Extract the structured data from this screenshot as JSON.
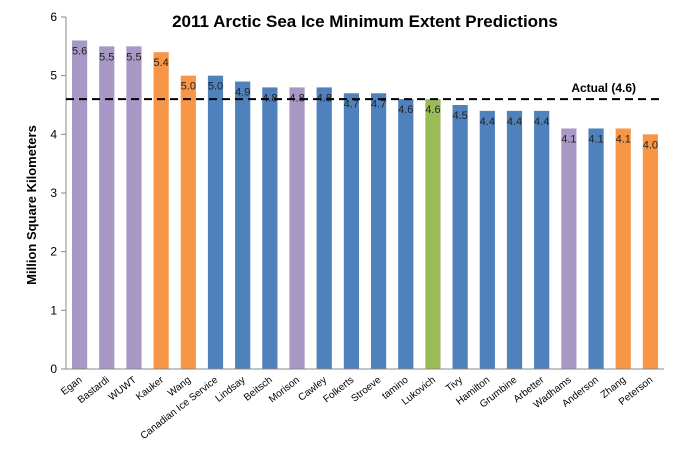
{
  "chart_data": {
    "type": "bar",
    "title": "2011 Arctic Sea Ice Minimum Extent Predictions",
    "xlabel": "",
    "ylabel": "Million Square Kilometers",
    "ylim": [
      0,
      6
    ],
    "yticks": [
      0,
      1,
      2,
      3,
      4,
      5,
      6
    ],
    "grid": false,
    "legend": "none",
    "categories": [
      "Egan",
      "Bastardi",
      "WUWT",
      "Kauker",
      "Wang",
      "Canadian Ice Service",
      "Lindsay",
      "Beitsch",
      "Morison",
      "Cawley",
      "Folkerts",
      "Stroeve",
      "tamino",
      "Lukovich",
      "Tivy",
      "Hamilton",
      "Grumbine",
      "Arbetter",
      "Wadhams",
      "Anderson",
      "Zhang",
      "Peterson"
    ],
    "values": [
      5.6,
      5.5,
      5.5,
      5.4,
      5.0,
      5.0,
      4.9,
      4.8,
      4.8,
      4.8,
      4.7,
      4.7,
      4.6,
      4.6,
      4.5,
      4.4,
      4.4,
      4.4,
      4.1,
      4.1,
      4.1,
      4.0
    ],
    "data_labels": [
      "5.6",
      "5.5",
      "5.5",
      "5.4",
      "5.0",
      "5.0",
      "4.9",
      "4.8",
      "4.8",
      "4.8",
      "4.7",
      "4.7",
      "4.6",
      "4.6",
      "4.5",
      "4.4",
      "4.4",
      "4.4",
      "4.1",
      "4.1",
      "4.1",
      "4.0"
    ],
    "bar_colors": [
      "#a898c6",
      "#a898c6",
      "#a898c6",
      "#f79646",
      "#f79646",
      "#4f81bd",
      "#4f81bd",
      "#4f81bd",
      "#a898c6",
      "#4f81bd",
      "#4f81bd",
      "#4f81bd",
      "#4f81bd",
      "#9bbb59",
      "#4f81bd",
      "#4f81bd",
      "#4f81bd",
      "#4f81bd",
      "#a898c6",
      "#4f81bd",
      "#f79646",
      "#f79646"
    ],
    "reference_line": {
      "value": 4.6,
      "label": "Actual (4.6)",
      "style": "dashed",
      "color": "#000000"
    }
  }
}
